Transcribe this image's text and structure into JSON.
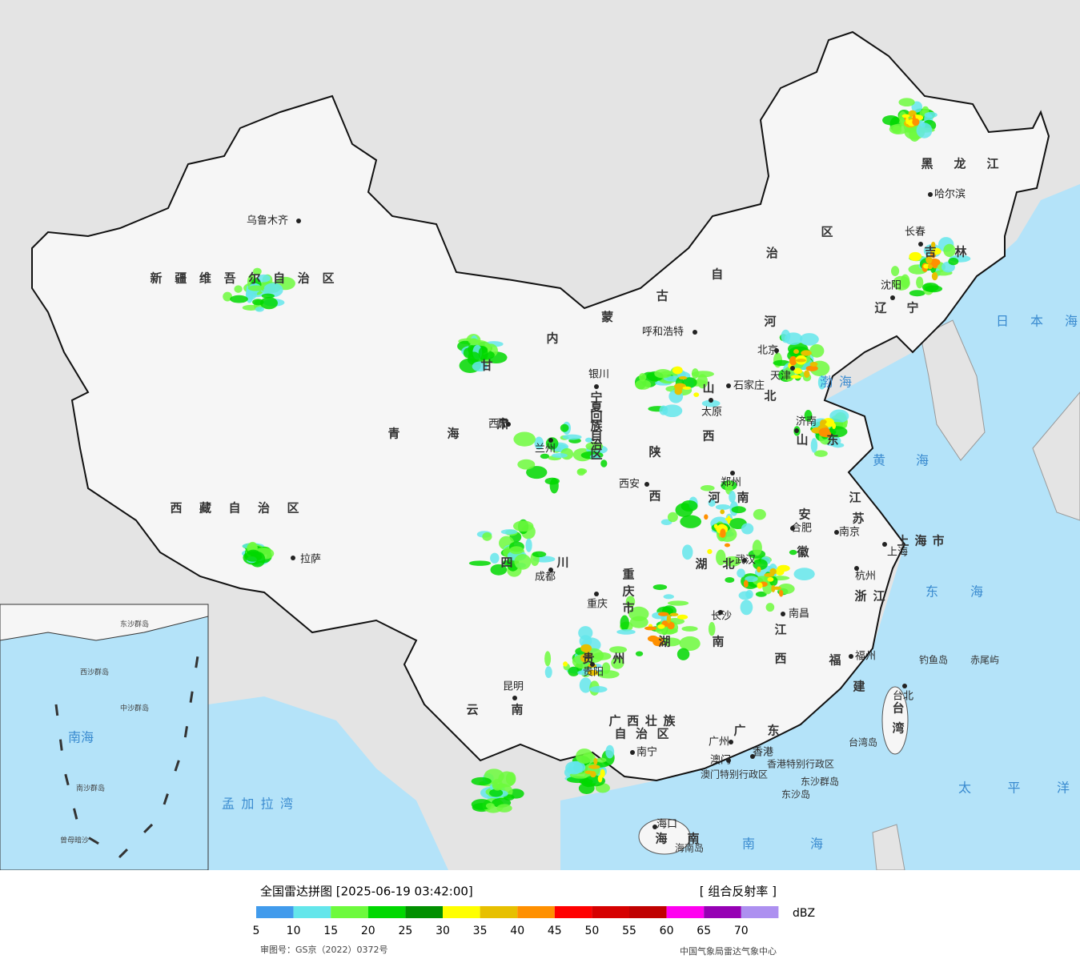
{
  "map": {
    "provinces": [
      "新疆维吾尔自治区",
      "西藏自治区",
      "青海",
      "甘肃",
      "内蒙古自治区",
      "黑龙江",
      "吉林",
      "辽宁",
      "河北",
      "山西",
      "山东",
      "河南",
      "陕西",
      "宁夏回族自治区",
      "江苏",
      "安徽",
      "上海市",
      "浙江",
      "湖北",
      "重庆市",
      "四川",
      "湖南",
      "江西",
      "福建",
      "贵州",
      "云南",
      "广西壮族",
      "自治区",
      "广东",
      "海南",
      "台湾"
    ],
    "cities": [
      "乌鲁木齐",
      "拉萨",
      "西宁",
      "兰州",
      "银川",
      "呼和浩特",
      "北京",
      "天津",
      "石家庄",
      "太原",
      "济南",
      "郑州",
      "西安",
      "成都",
      "重庆",
      "武汉",
      "合肥",
      "南京",
      "上海",
      "杭州",
      "南昌",
      "长沙",
      "福州",
      "台北",
      "贵阳",
      "昆明",
      "南宁",
      "广州",
      "香港",
      "澳门",
      "海口",
      "长春",
      "沈阳",
      "哈尔滨"
    ],
    "seas": [
      "日本海",
      "渤海",
      "黄海",
      "东海",
      "太平洋",
      "南海",
      "孟加拉湾"
    ],
    "islands": [
      "钓鱼岛",
      "赤尾屿",
      "台湾岛",
      "东沙群岛",
      "东沙岛",
      "海南岛",
      "香港特别行政区",
      "澳门特别行政区"
    ],
    "inset": [
      "南海",
      "东沙群岛",
      "西沙群岛",
      "中沙群岛",
      "南沙群岛",
      "曾母暗沙"
    ]
  },
  "legend": {
    "title": "全国雷达拼图 [2025-06-19 03:42:00]",
    "product": "[ 组合反射率 ]",
    "unit": "dBZ",
    "bins": [
      {
        "value": 5,
        "color": "#419bec"
      },
      {
        "value": 10,
        "color": "#64e6eb"
      },
      {
        "value": 15,
        "color": "#6dfa3d"
      },
      {
        "value": 20,
        "color": "#00d800"
      },
      {
        "value": 25,
        "color": "#019000"
      },
      {
        "value": 30,
        "color": "#ffff00"
      },
      {
        "value": 35,
        "color": "#e7c000"
      },
      {
        "value": 40,
        "color": "#ff9000"
      },
      {
        "value": 45,
        "color": "#ff0000"
      },
      {
        "value": 50,
        "color": "#d60000"
      },
      {
        "value": 55,
        "color": "#c00000"
      },
      {
        "value": 60,
        "color": "#ff00f0"
      },
      {
        "value": 65,
        "color": "#9600b4"
      },
      {
        "value": 70,
        "color": "#ad90f0"
      }
    ],
    "approval": "审图号：GS京（2022）0372号",
    "source": "中国气象局雷达气象中心"
  }
}
